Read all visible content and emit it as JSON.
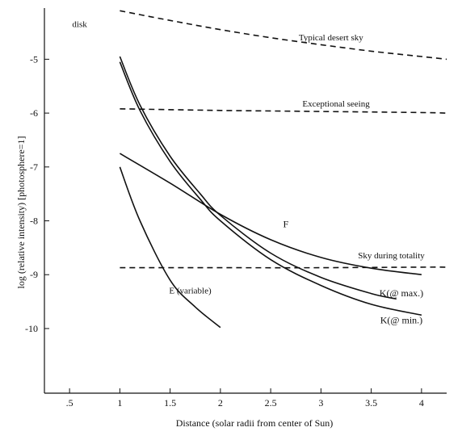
{
  "chart_data": {
    "type": "line",
    "title": "",
    "xlabel": "Distance (solar radii from center of Sun)",
    "ylabel": "log (relative intensity) [photosphere=1]",
    "xlim": [
      0.25,
      4.25
    ],
    "ylim": [
      -11.2,
      -4.05
    ],
    "x_ticks": [
      0.5,
      1,
      1.5,
      2,
      2.5,
      3,
      3.5,
      4
    ],
    "x_tick_labels": [
      ".5",
      "1",
      "1.5",
      "2",
      "2.5",
      "3",
      "3.5",
      "4"
    ],
    "y_ticks": [
      -5,
      -6,
      -7,
      -8,
      -9,
      -10
    ],
    "y_tick_labels": [
      "-5",
      "-6",
      "-7",
      "-8",
      "-9",
      "-10"
    ],
    "grid": false,
    "annotations": [
      {
        "text": "disk",
        "x": 0.6,
        "y": -4.4
      },
      {
        "text": "Typical desert sky",
        "x": 3.1,
        "y": -4.65
      },
      {
        "text": "Exceptional seeing",
        "x": 3.15,
        "y": -5.88
      },
      {
        "text": "Sky during totality",
        "x": 3.7,
        "y": -8.7
      },
      {
        "text": "F",
        "x": 2.65,
        "y": -8.12
      },
      {
        "text": "K(@ max.)",
        "x": 3.8,
        "y": -9.4
      },
      {
        "text": "K(@ min.)",
        "x": 3.8,
        "y": -9.9
      },
      {
        "text": "E  (variable)",
        "x": 1.7,
        "y": -9.35
      }
    ],
    "series": [
      {
        "name": "Typical desert sky",
        "style": "dashed",
        "x": [
          1.0,
          1.5,
          2.0,
          2.5,
          3.0,
          3.5,
          4.0,
          4.25
        ],
        "y": [
          -4.1,
          -4.28,
          -4.45,
          -4.6,
          -4.73,
          -4.85,
          -4.95,
          -5.0
        ]
      },
      {
        "name": "Exceptional seeing",
        "style": "dashed",
        "x": [
          1.0,
          2.0,
          3.0,
          4.0,
          4.25
        ],
        "y": [
          -5.92,
          -5.95,
          -5.97,
          -5.99,
          -6.0
        ]
      },
      {
        "name": "Sky during totality",
        "style": "dashed",
        "x": [
          1.0,
          2.0,
          3.0,
          4.0,
          4.25
        ],
        "y": [
          -8.87,
          -8.87,
          -8.87,
          -8.86,
          -8.86
        ]
      },
      {
        "name": "K(@ max.)",
        "style": "solid",
        "x": [
          1.0,
          1.2,
          1.5,
          1.8,
          2.0,
          2.5,
          3.0,
          3.5,
          3.75
        ],
        "y": [
          -4.95,
          -5.85,
          -6.8,
          -7.5,
          -7.9,
          -8.6,
          -9.05,
          -9.35,
          -9.45
        ]
      },
      {
        "name": "K(@ min.)",
        "style": "solid",
        "x": [
          1.0,
          1.2,
          1.5,
          1.8,
          2.0,
          2.5,
          3.0,
          3.5,
          4.0
        ],
        "y": [
          -5.05,
          -5.95,
          -6.9,
          -7.6,
          -8.0,
          -8.72,
          -9.2,
          -9.55,
          -9.75
        ]
      },
      {
        "name": "F",
        "style": "solid",
        "x": [
          1.0,
          1.5,
          2.0,
          2.5,
          3.0,
          3.5,
          4.0
        ],
        "y": [
          -6.75,
          -7.3,
          -7.88,
          -8.35,
          -8.68,
          -8.88,
          -9.0
        ]
      },
      {
        "name": "E (variable)",
        "style": "solid",
        "x": [
          1.0,
          1.2,
          1.5,
          1.75,
          2.0
        ],
        "y": [
          -7.0,
          -8.0,
          -9.1,
          -9.6,
          -9.98
        ]
      }
    ]
  }
}
